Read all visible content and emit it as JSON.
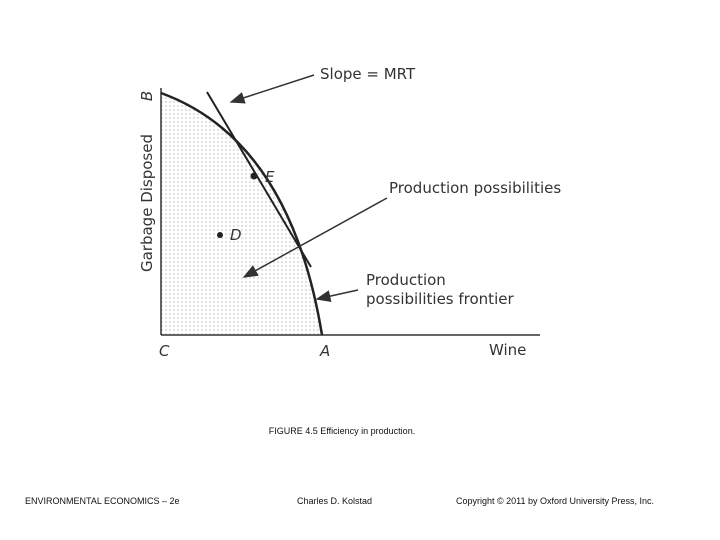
{
  "figure": {
    "y_axis_label": "Garbage Disposed",
    "x_axis_label": "Wine",
    "points": {
      "B": "B",
      "C": "C",
      "A": "A",
      "E": "E",
      "D": "D"
    },
    "annotations": {
      "slope": "Slope = MRT",
      "possibilities": "Production possibilities",
      "frontier": [
        "Production",
        "possibilities frontier"
      ]
    },
    "caption": "FIGURE 4.5 Efficiency in production."
  },
  "footer": {
    "left": "ENVIRONMENTAL ECONOMICS – 2e",
    "center": "Charles D. Kolstad",
    "right": "Copyright © 2011 by Oxford University Press, Inc."
  }
}
